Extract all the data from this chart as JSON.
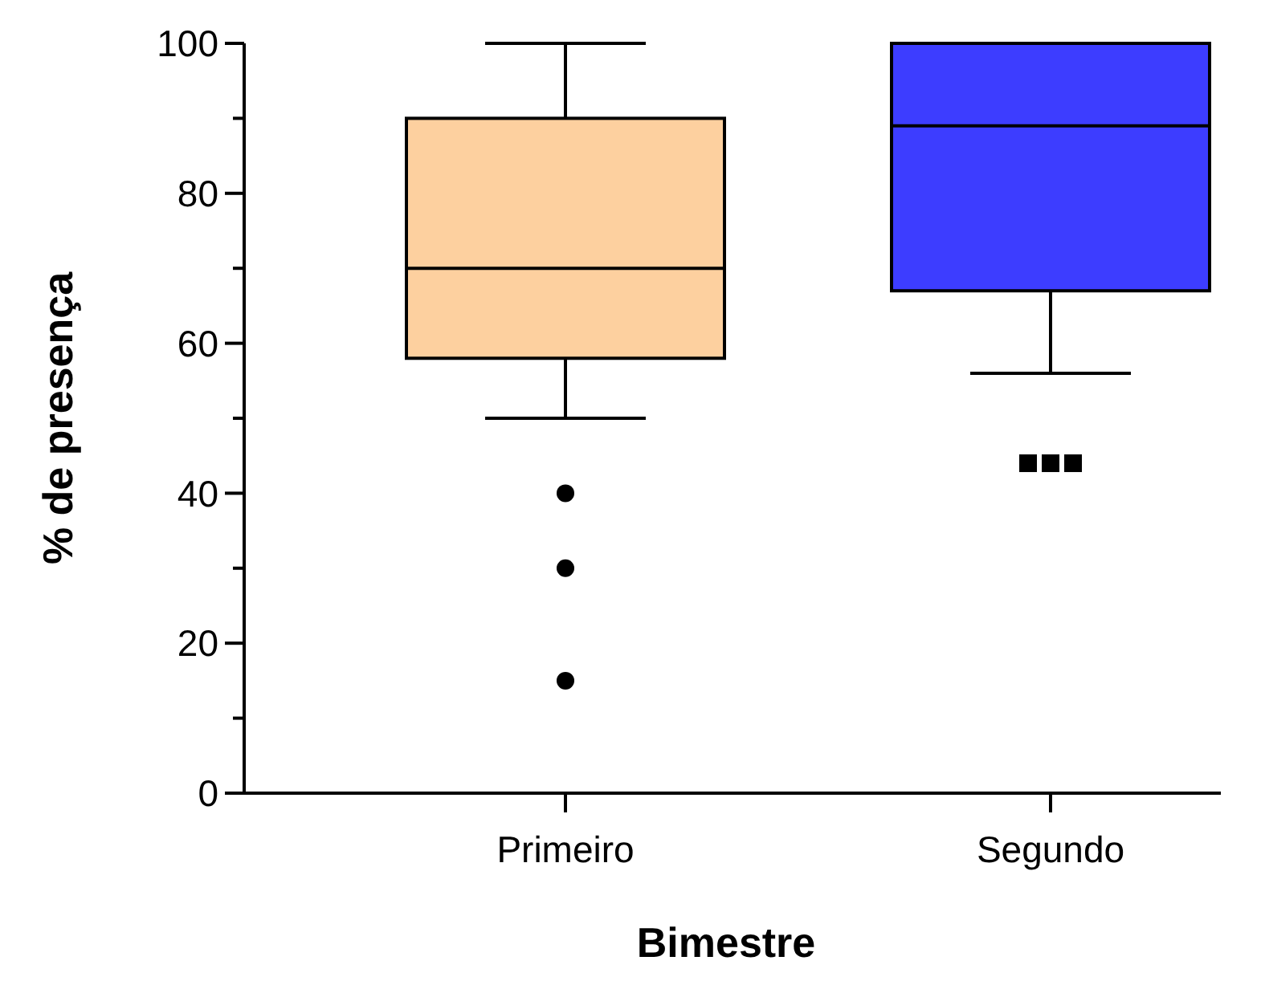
{
  "chart_data": {
    "type": "box",
    "xlabel": "Bimestre",
    "ylabel": "% de presença",
    "categories": [
      "Primeiro",
      "Segundo"
    ],
    "series": [
      {
        "color": "#fdd09f",
        "marker": "circle",
        "boxes": [
          {
            "low": 50,
            "q1": 58,
            "median": 70,
            "q3": 90,
            "high": 100,
            "outliers": [
              40,
              30,
              15
            ]
          },
          null
        ]
      },
      {
        "color": "#3d3dff",
        "marker": "square",
        "boxes": [
          null,
          {
            "low": 56,
            "q1": 67,
            "median": 89,
            "q3": 100,
            "high": 100,
            "outliers": [
              44,
              44,
              44
            ]
          }
        ]
      }
    ],
    "ylim": [
      0,
      100
    ],
    "yticks": [
      0,
      {
        "value": 10,
        "label": null
      },
      20,
      {
        "value": 30,
        "label": null
      },
      40,
      {
        "value": 50,
        "label": null
      },
      60,
      {
        "value": 70,
        "label": null
      },
      80,
      {
        "value": 90,
        "label": null
      },
      100
    ],
    "grid": false
  }
}
